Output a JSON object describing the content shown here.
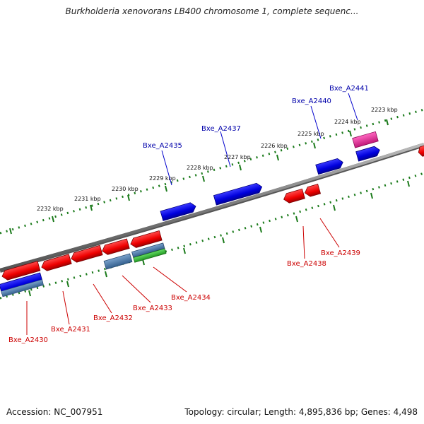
{
  "title": "Burkholderia xenovorans LB400 chromosome 1, complete sequenc...",
  "footer": {
    "accession": "Accession: NC_007951",
    "summary": "Topology: circular; Length: 4,895,836 bp; Genes: 4,498"
  },
  "colors": {
    "forward_gene": "#0000ee",
    "reverse_gene": "#ee0000",
    "highlight_gene": "#e0309a",
    "rna_green": "#33bb33",
    "steel_blue": "#4a78a8",
    "tick_green": "#1a7a1a",
    "backbone": "#888888",
    "forward_label": "#0000aa",
    "reverse_label": "#cc0000"
  },
  "ticks_upper": [
    "2232 kbp",
    "2231 kbp",
    "2230 kbp",
    "2229 kbp",
    "2228 kbp",
    "2227 kbp",
    "2226 kbp",
    "2225 kbp",
    "2224 kbp",
    "2223 kbp"
  ],
  "gene_labels_forward": [
    "Bxe_A2435",
    "Bxe_A2437",
    "Bxe_A2440",
    "Bxe_A2441"
  ],
  "gene_labels_reverse": [
    "Bxe_A2430",
    "Bxe_A2431",
    "Bxe_A2432",
    "Bxe_A2433",
    "Bxe_A2434",
    "Bxe_A2438",
    "Bxe_A2439"
  ]
}
